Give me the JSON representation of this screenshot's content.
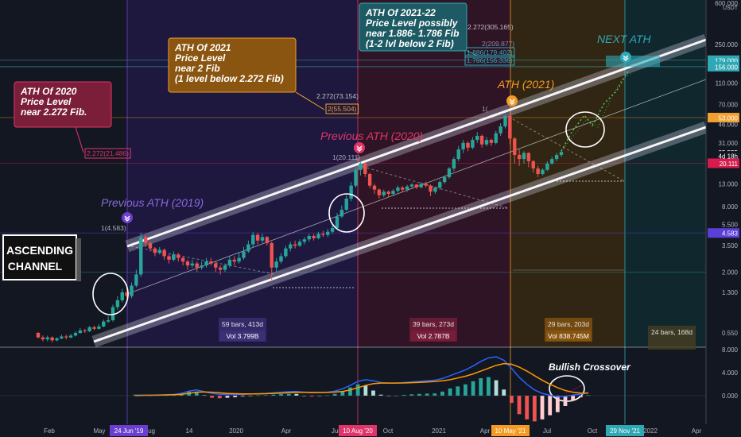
{
  "chart_data": {
    "type": "candlestick",
    "scale": "log",
    "currency": "USDT",
    "y_ticks": [
      600,
      250,
      110,
      70,
      46,
      31,
      13,
      8,
      5.5,
      3.5,
      2,
      1.3,
      0.55
    ],
    "y_tick_labels": [
      "600.000",
      "250.000",
      "110.000",
      "70.000",
      "46.000",
      "31.000",
      "13.000",
      "8.000",
      "5.500",
      "3.500",
      "2.000",
      "1.300",
      "0.550"
    ],
    "price_badges": [
      {
        "label": "179.000",
        "value": 179,
        "color": "#2fa8b5"
      },
      {
        "label": "156.000",
        "value": 156,
        "color": "#2fa8b5"
      },
      {
        "label": "53.000",
        "value": 53,
        "color": "#f0a030"
      },
      {
        "label": "25.555",
        "value": 25.555,
        "color": "#ffffff"
      },
      {
        "label": "4d 18h",
        "value": 23.5,
        "color": "#ffffff"
      },
      {
        "label": "20.111",
        "value": 20.111,
        "color": "#d81b4d"
      },
      {
        "label": "4.583",
        "value": 4.583,
        "color": "#5b3fd6"
      }
    ],
    "x_ticks": [
      "Feb",
      "May",
      "Aug",
      "14",
      "2020",
      "Apr",
      "Jul",
      "Oct",
      "2021",
      "Apr",
      "Jul",
      "Oct",
      "2022",
      "Apr"
    ],
    "x_highlights": [
      {
        "label": "24 Jun '19",
        "color": "#6a3fd0"
      },
      {
        "label": "10 Aug '20",
        "color": "#e0356a"
      },
      {
        "label": "10 May '21",
        "color": "#f59a23"
      },
      {
        "label": "29 Nov '21",
        "color": "#2fa8b5"
      }
    ],
    "osc_ticks": [
      "8.000",
      "4.000",
      "0.000"
    ],
    "fib_levels": [
      {
        "label": "1(4.583)",
        "value": 4.583
      },
      {
        "label": "1(20.111)",
        "value": 20.111
      },
      {
        "label": "2.272(21.486)",
        "value": 21.486
      },
      {
        "label": "2(55.504)",
        "value": 55.504
      },
      {
        "label": "2.272(73.154)",
        "value": 73.154
      },
      {
        "label": "2.272(305.165)",
        "value": 305.165
      },
      {
        "label": "2(209.877)",
        "value": 209.877
      },
      {
        "label": "1.886(179.402)",
        "value": 179.402
      },
      {
        "label": "1.786(156.336)",
        "value": 156.336
      },
      {
        "label": "1(",
        "value": 0
      }
    ],
    "bars_info": [
      {
        "bars": "59 bars, 413d",
        "vol": "Vol 3.799B"
      },
      {
        "bars": "39 bars, 273d",
        "vol": "Vol 2.787B"
      },
      {
        "bars": "29 bars, 203d",
        "vol": "Vol 838.745M"
      },
      {
        "bars": "24 bars, 168d",
        "vol": ""
      }
    ],
    "labels": {
      "ath2019": "Previous ATH (2019)",
      "ath2020": "Previous ATH (2020)",
      "ath2021": "ATH (2021)",
      "next": "NEXT ATH",
      "crossover": "Bullish Crossover",
      "channel1": "ASCENDING",
      "channel2": "CHANNEL"
    },
    "callouts": {
      "c2020": [
        "ATH Of 2020",
        "Price Level",
        "near 2.272 Fib."
      ],
      "c2021": [
        "ATH Of 2021",
        "Price Level",
        "near 2 Fib",
        "(1 level below 2.272 Fib)"
      ],
      "c2122": [
        "ATH Of 2021-22",
        "Price Level possibly",
        "near 1.886- 1.786 Fib",
        "(1-2 lvl below 2 Fib)"
      ]
    },
    "candles": [
      [
        0.55,
        0.5,
        0.56,
        0.49
      ],
      [
        0.5,
        0.48,
        0.52,
        0.46
      ],
      [
        0.48,
        0.5,
        0.52,
        0.46
      ],
      [
        0.5,
        0.47,
        0.51,
        0.45
      ],
      [
        0.47,
        0.49,
        0.5,
        0.46
      ],
      [
        0.49,
        0.51,
        0.53,
        0.48
      ],
      [
        0.51,
        0.5,
        0.53,
        0.48
      ],
      [
        0.5,
        0.52,
        0.54,
        0.49
      ],
      [
        0.52,
        0.55,
        0.57,
        0.51
      ],
      [
        0.55,
        0.58,
        0.61,
        0.54
      ],
      [
        0.58,
        0.57,
        0.6,
        0.55
      ],
      [
        0.57,
        0.62,
        0.64,
        0.56
      ],
      [
        0.62,
        0.6,
        0.64,
        0.58
      ],
      [
        0.6,
        0.63,
        0.66,
        0.59
      ],
      [
        0.63,
        0.7,
        0.73,
        0.62
      ],
      [
        0.7,
        0.72,
        0.78,
        0.68
      ],
      [
        0.72,
        0.95,
        1.0,
        0.7
      ],
      [
        0.95,
        1.1,
        1.2,
        0.9
      ],
      [
        1.1,
        1.3,
        1.4,
        1.05
      ],
      [
        1.3,
        1.2,
        1.45,
        1.15
      ],
      [
        1.2,
        1.5,
        1.6,
        1.15
      ],
      [
        1.5,
        1.9,
        2.1,
        1.45
      ],
      [
        1.9,
        4.2,
        4.6,
        1.8
      ],
      [
        4.2,
        3.7,
        4.4,
        3.4
      ],
      [
        3.7,
        3.3,
        3.8,
        3.1
      ],
      [
        3.3,
        3.0,
        3.4,
        2.8
      ],
      [
        3.0,
        3.2,
        3.4,
        2.9
      ],
      [
        3.2,
        2.8,
        3.3,
        2.6
      ],
      [
        2.8,
        2.6,
        2.9,
        2.4
      ],
      [
        2.6,
        2.9,
        3.1,
        2.5
      ],
      [
        2.9,
        2.7,
        3.0,
        2.5
      ],
      [
        2.7,
        2.5,
        2.8,
        2.3
      ],
      [
        2.5,
        2.3,
        2.6,
        2.1
      ],
      [
        2.3,
        2.4,
        2.6,
        2.2
      ],
      [
        2.4,
        2.2,
        2.5,
        2.0
      ],
      [
        2.2,
        2.3,
        2.5,
        2.1
      ],
      [
        2.3,
        2.5,
        2.7,
        2.2
      ],
      [
        2.5,
        2.4,
        2.7,
        2.3
      ],
      [
        2.4,
        2.2,
        2.5,
        2.0
      ],
      [
        2.2,
        2.1,
        2.3,
        1.9
      ],
      [
        2.1,
        2.3,
        2.4,
        2.0
      ],
      [
        2.3,
        2.6,
        2.8,
        2.2
      ],
      [
        2.6,
        2.5,
        2.8,
        2.3
      ],
      [
        2.5,
        2.7,
        3.0,
        2.4
      ],
      [
        2.7,
        3.1,
        3.4,
        2.6
      ],
      [
        3.1,
        3.6,
        3.9,
        3.0
      ],
      [
        3.6,
        4.4,
        4.7,
        3.4
      ],
      [
        4.4,
        3.9,
        4.6,
        3.6
      ],
      [
        3.9,
        4.2,
        4.5,
        3.7
      ],
      [
        4.2,
        3.7,
        4.3,
        3.5
      ],
      [
        3.7,
        2.2,
        3.8,
        1.7
      ],
      [
        2.2,
        2.5,
        2.7,
        2.0
      ],
      [
        2.5,
        2.8,
        3.0,
        2.4
      ],
      [
        2.8,
        3.3,
        3.5,
        2.7
      ],
      [
        3.3,
        3.6,
        3.8,
        3.1
      ],
      [
        3.6,
        3.5,
        3.9,
        3.3
      ],
      [
        3.5,
        3.8,
        4.0,
        3.4
      ],
      [
        3.8,
        4.0,
        4.2,
        3.6
      ],
      [
        4.0,
        4.3,
        4.5,
        3.8
      ],
      [
        4.3,
        4.1,
        4.5,
        3.9
      ],
      [
        4.1,
        4.5,
        4.7,
        4.0
      ],
      [
        4.5,
        4.4,
        4.8,
        4.2
      ],
      [
        4.4,
        4.7,
        5.0,
        4.2
      ],
      [
        4.7,
        5.1,
        5.4,
        4.5
      ],
      [
        5.1,
        6.5,
        7.0,
        5.0
      ],
      [
        6.5,
        7.5,
        8.2,
        6.3
      ],
      [
        7.5,
        9.5,
        10.2,
        7.3
      ],
      [
        9.5,
        12.5,
        13.5,
        9.0
      ],
      [
        12.5,
        17.5,
        19.0,
        12.0
      ],
      [
        17.5,
        20.0,
        21.0,
        15.5
      ],
      [
        20.0,
        16.0,
        20.5,
        15.0
      ],
      [
        16.0,
        12.5,
        16.5,
        11.8
      ],
      [
        12.5,
        11.5,
        13.0,
        10.5
      ],
      [
        11.5,
        10.2,
        11.8,
        9.5
      ],
      [
        10.2,
        11.0,
        11.5,
        9.8
      ],
      [
        11.0,
        10.5,
        11.3,
        9.8
      ],
      [
        10.5,
        11.2,
        11.6,
        10.0
      ],
      [
        11.2,
        12.0,
        12.5,
        10.8
      ],
      [
        12.0,
        11.5,
        12.4,
        10.9
      ],
      [
        11.5,
        12.3,
        12.7,
        11.0
      ],
      [
        12.3,
        12.8,
        13.2,
        11.8
      ],
      [
        12.8,
        12.1,
        13.0,
        11.6
      ],
      [
        12.1,
        13.0,
        13.5,
        11.8
      ],
      [
        13.0,
        12.5,
        13.6,
        12.0
      ],
      [
        12.5,
        11.0,
        12.8,
        10.0
      ],
      [
        11.0,
        12.0,
        12.3,
        10.5
      ],
      [
        12.0,
        13.5,
        14.0,
        11.5
      ],
      [
        13.5,
        15.0,
        15.5,
        13.0
      ],
      [
        15.0,
        18.0,
        18.5,
        14.5
      ],
      [
        18.0,
        22.0,
        23.0,
        17.0
      ],
      [
        22.0,
        27.0,
        29.0,
        21.0
      ],
      [
        27.0,
        31.0,
        33.0,
        25.0
      ],
      [
        31.0,
        28.0,
        32.0,
        26.0
      ],
      [
        28.0,
        33.0,
        35.0,
        27.0
      ],
      [
        33.0,
        36.0,
        39.0,
        31.0
      ],
      [
        36.0,
        30.0,
        37.0,
        28.0
      ],
      [
        30.0,
        33.0,
        35.0,
        29.0
      ],
      [
        33.0,
        31.0,
        34.0,
        29.0
      ],
      [
        31.0,
        38.0,
        40.0,
        30.0
      ],
      [
        38.0,
        44.0,
        47.0,
        36.0
      ],
      [
        44.0,
        55.0,
        57.0,
        42.0
      ],
      [
        55.0,
        34.0,
        56.0,
        30.0
      ],
      [
        34.0,
        24.0,
        35.0,
        20.0
      ],
      [
        24.0,
        22.0,
        27.0,
        19.0
      ],
      [
        22.0,
        25.0,
        26.0,
        20.0
      ],
      [
        25.0,
        21.0,
        25.5,
        18.5
      ],
      [
        21.0,
        18.0,
        21.5,
        16.5
      ],
      [
        18.0,
        16.0,
        19.0,
        15.0
      ],
      [
        16.0,
        17.5,
        18.0,
        15.5
      ],
      [
        17.5,
        20.0,
        21.0,
        17.0
      ],
      [
        20.0,
        22.0,
        23.0,
        19.5
      ],
      [
        22.0,
        24.0,
        25.0,
        21.0
      ],
      [
        24.0,
        25.555,
        26.5,
        23.0
      ]
    ],
    "macd": [
      0.1,
      0.1,
      0.1,
      0.12,
      0.15,
      0.2,
      0.4,
      0.8,
      1.0,
      0.7,
      0.4,
      0.25,
      0.2,
      0.2,
      0.25,
      0.3,
      0.35,
      0.4,
      0.5,
      0.6,
      0.7,
      0.75,
      0.6,
      0.5,
      0.55,
      0.6,
      0.8,
      1.2,
      1.8,
      2.5,
      2.8,
      2.6,
      2.3,
      2.2,
      2.2,
      2.3,
      2.4,
      2.5,
      2.6,
      2.7,
      3.0,
      3.5,
      4.0,
      4.5,
      5.2,
      6.0,
      6.6,
      6.8,
      6.2,
      4.8,
      3.2,
      2.0,
      1.0,
      0.4,
      0.1,
      -0.2,
      -0.1,
      0.1,
      0.3,
      0.5
    ],
    "signal": [
      0.0,
      0.05,
      0.07,
      0.09,
      0.12,
      0.15,
      0.25,
      0.4,
      0.6,
      0.65,
      0.6,
      0.5,
      0.4,
      0.35,
      0.32,
      0.31,
      0.32,
      0.35,
      0.4,
      0.45,
      0.52,
      0.58,
      0.6,
      0.58,
      0.57,
      0.58,
      0.63,
      0.75,
      1.0,
      1.4,
      1.8,
      2.1,
      2.2,
      2.2,
      2.2,
      2.22,
      2.27,
      2.33,
      2.4,
      2.48,
      2.6,
      2.8,
      3.1,
      3.4,
      3.8,
      4.3,
      4.8,
      5.3,
      5.6,
      5.5,
      5.0,
      4.3,
      3.5,
      2.7,
      2.0,
      1.4,
      0.9,
      0.6,
      0.45,
      0.45
    ]
  }
}
